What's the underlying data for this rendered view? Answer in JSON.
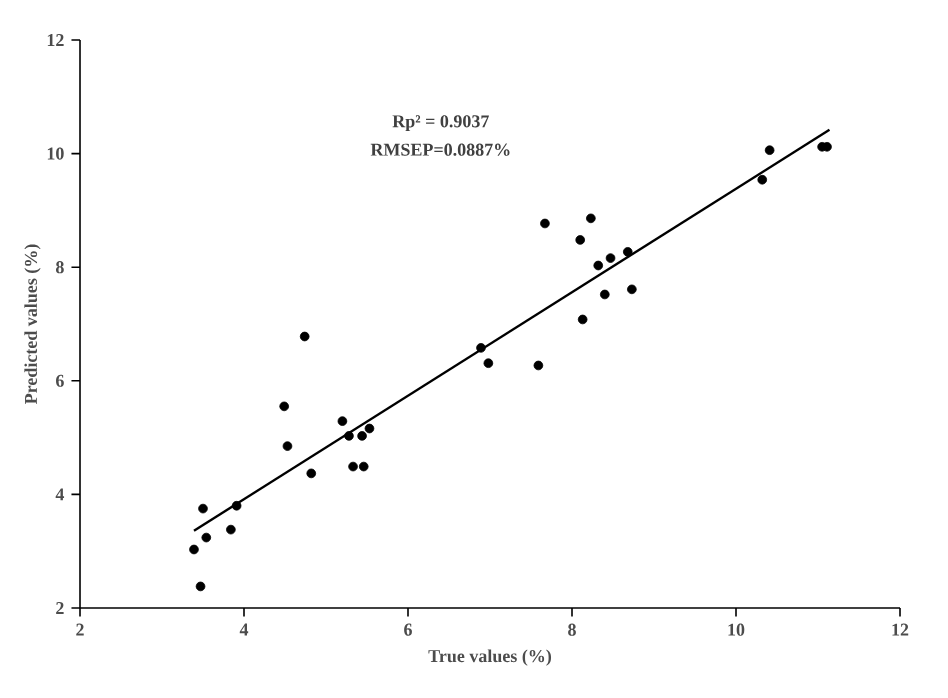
{
  "chart_data": {
    "type": "scatter",
    "xlabel": "True values (%)",
    "ylabel": "Predicted values (%)",
    "annotations": [
      "Rp² = 0.9037",
      "RMSEP=**0.0887%**"
    ],
    "xlim": [
      2,
      12
    ],
    "ylim": [
      2,
      12
    ],
    "xticks": [
      2,
      4,
      6,
      8,
      10,
      12
    ],
    "yticks": [
      2,
      4,
      6,
      8,
      10,
      12
    ],
    "series": [
      {
        "color": "#000000",
        "marker": "circle",
        "x": [
          3.39,
          3.47,
          3.5,
          3.54,
          3.84,
          3.91,
          4.49,
          4.53,
          4.74,
          4.82,
          5.2,
          5.28,
          5.33,
          5.44,
          5.46,
          5.53,
          6.89,
          6.98,
          7.59,
          7.67,
          8.1,
          8.13,
          8.23,
          8.32,
          8.4,
          8.47,
          8.68,
          8.73,
          10.32,
          10.41,
          11.05,
          11.11
        ],
        "values": [
          3.03,
          2.38,
          3.75,
          3.24,
          3.38,
          3.8,
          5.55,
          4.85,
          6.78,
          4.37,
          5.29,
          5.03,
          4.49,
          5.03,
          4.49,
          5.16,
          6.58,
          6.31,
          6.27,
          8.77,
          8.48,
          7.08,
          8.86,
          8.03,
          7.52,
          8.16,
          8.27,
          7.61,
          9.54,
          10.06,
          10.12,
          10.12
        ]
      },
      {
        "type": "line",
        "color": "#000000",
        "line_style": "solid",
        "marker": "none",
        "x": [
          3.39,
          11.14
        ],
        "values": [
          3.36,
          10.42
        ]
      }
    ]
  }
}
